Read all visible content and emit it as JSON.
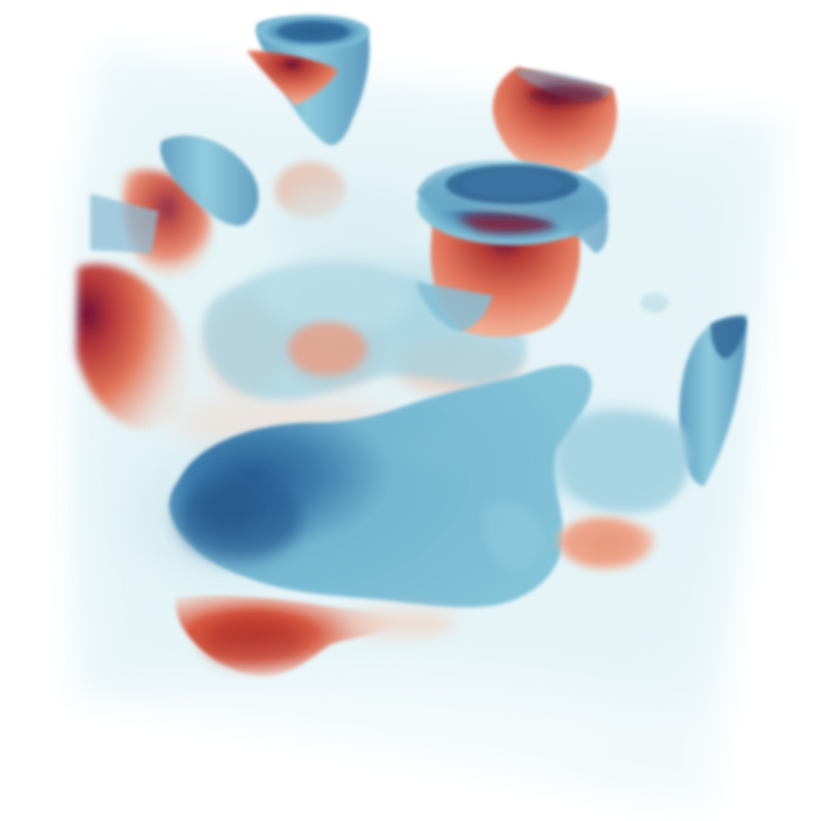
{
  "scene": {
    "render_type": "3d-volume-rendering",
    "colormap": "diverging-red-blue",
    "colors": {
      "background": "#ffffff",
      "volume_tint": "#e3f4f8",
      "volume_edge": "#f1f9fb",
      "red_dark": "#7a1238",
      "red_mid": "#c94a3a",
      "red_light": "#ec9a7e",
      "red_faint": "#f3c8b4",
      "blue_dark": "#275c8f",
      "blue_mid": "#4d8db4",
      "blue_light": "#82c3d8",
      "blue_faint": "#b8dfea"
    }
  }
}
